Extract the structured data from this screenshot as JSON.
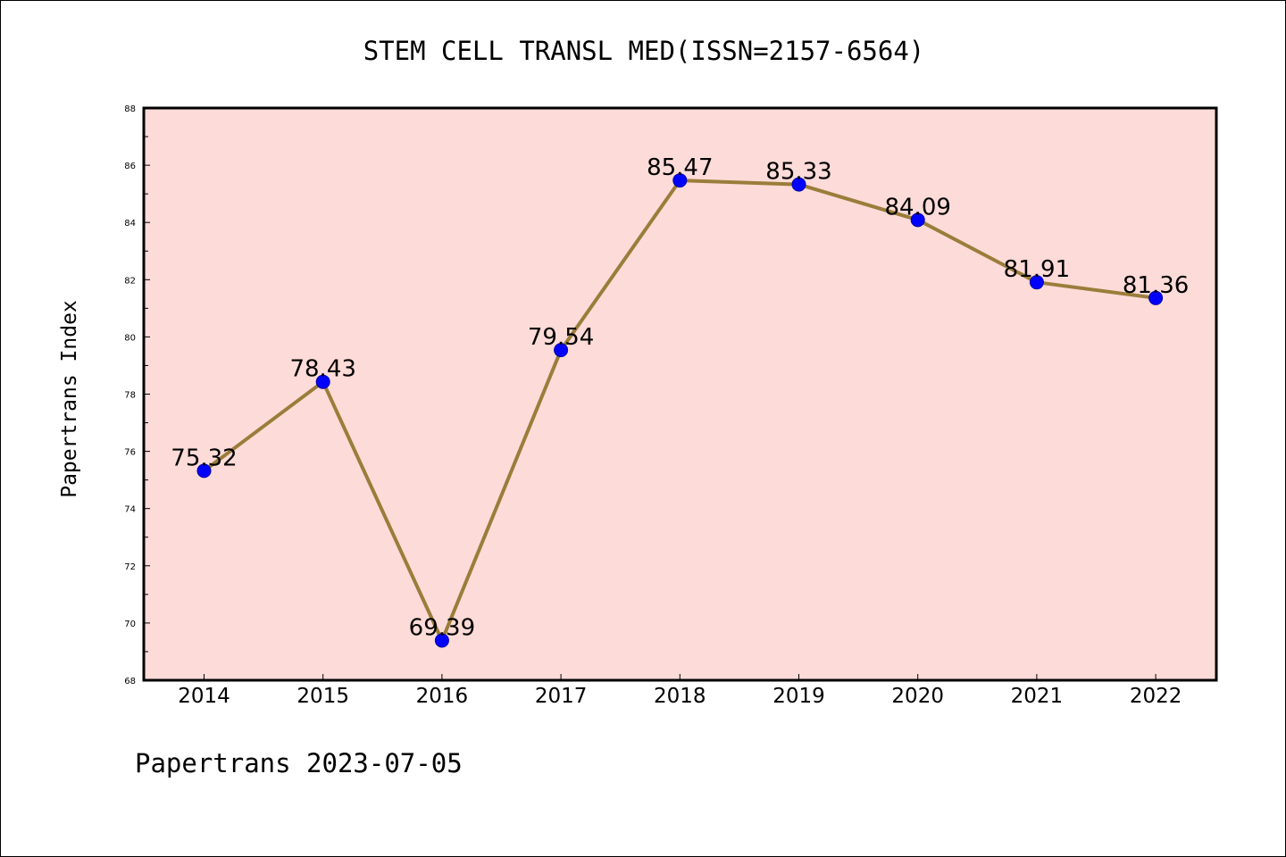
{
  "chart_data": {
    "type": "line",
    "title": "STEM CELL TRANSL MED(ISSN=2157-6564)",
    "xlabel": "",
    "ylabel": "Papertrans Index",
    "x": [
      2014,
      2015,
      2016,
      2017,
      2018,
      2019,
      2020,
      2021,
      2022
    ],
    "series": [
      {
        "values": [
          75.32,
          78.43,
          69.39,
          79.54,
          85.47,
          85.33,
          84.09,
          81.91,
          81.36
        ],
        "data_labels": [
          "75.32",
          "78.43",
          "69.39",
          "79.54",
          "85.47",
          "85.33",
          "84.09",
          "81.91",
          "81.36"
        ]
      }
    ],
    "ylim": [
      68,
      88
    ],
    "yticks": [
      68,
      70,
      72,
      74,
      76,
      78,
      80,
      82,
      84,
      86,
      88
    ],
    "grid": false,
    "legend": "none",
    "colors": {
      "plot_background": "#fddbd8",
      "line": "#9a7d3a",
      "marker": "#0000ff",
      "axes": "#000000"
    }
  },
  "footer": "Papertrans 2023-07-05"
}
